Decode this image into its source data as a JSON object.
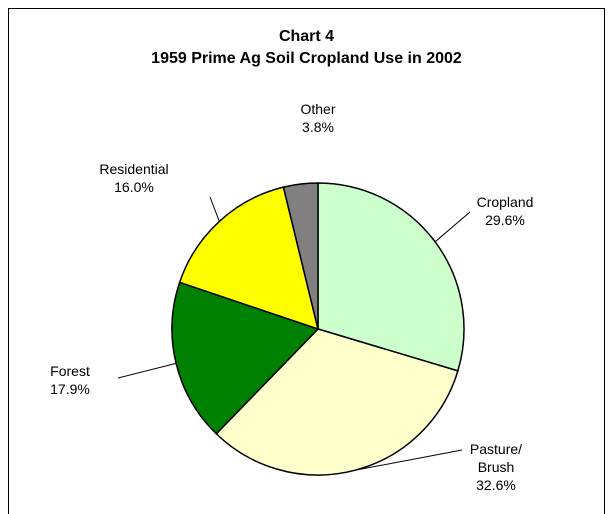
{
  "chart_data": {
    "type": "pie",
    "title": "Chart 4",
    "subtitle": "1959 Prime Ag Soil Cropland Use in 2002",
    "categories": [
      "Cropland",
      "Pasture/ Brush",
      "Forest",
      "Residential",
      "Other"
    ],
    "values": [
      29.6,
      32.6,
      17.9,
      16.0,
      3.8
    ],
    "value_labels": [
      "29.6%",
      "32.6%",
      "17.9%",
      "16.0%",
      "3.8%"
    ],
    "colors": [
      "#ccffcc",
      "#ffffcc",
      "#008000",
      "#ffff00",
      "#808080"
    ]
  }
}
